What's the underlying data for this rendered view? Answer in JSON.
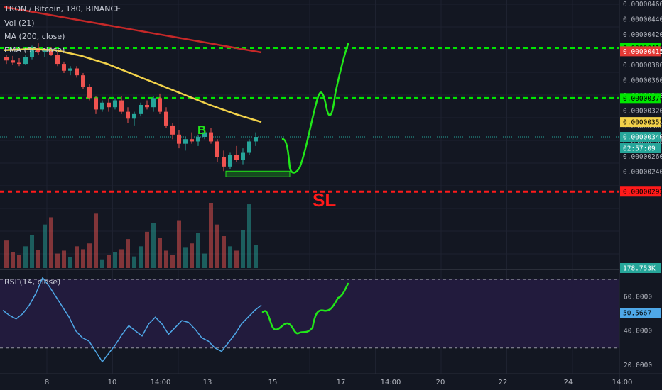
{
  "header": {
    "symbol": "TRON / Bitcoin, 180, BINANCE",
    "volume": "Vol (21)",
    "ma": "MA (200, close)",
    "ema": "EMA (50, close)",
    "rsi_label": "RSI (14, close)"
  },
  "annotations": {
    "sl_label": "SL",
    "b_label": "B"
  },
  "colors": {
    "background": "#131722",
    "grid": "#1e2230",
    "up": "#26a69a",
    "down": "#ef5350",
    "ma200": "#c62828",
    "ema50": "#f2d24a",
    "green_level": "#00e600",
    "red_level": "#ff1a1a",
    "rsi_line": "#4fa8e8",
    "drawn_path": "#21e619",
    "rsi_band": "#221b3d"
  },
  "chart_data": [
    {
      "type": "candlestick",
      "title": "TRON / Bitcoin, 180, BINANCE",
      "ylim": [
        2.25e-06,
        4.6e-06
      ],
      "y_ticks": [
        "0.00000460",
        "0.00000440",
        "0.00000420",
        "0.00000400",
        "0.00000380",
        "0.00000360",
        "0.00000340",
        "0.00000320",
        "0.00000300",
        "0.00000280",
        "0.00000260",
        "0.00000240"
      ],
      "x_ticks": [
        "8",
        "10",
        "14:00",
        "13",
        "15",
        "17",
        "14:00",
        "20",
        "22",
        "24",
        "14:00"
      ],
      "price_levels": [
        {
          "value": 4.18e-06,
          "label": "0.00000418",
          "color": "#00e600",
          "style": "dashed"
        },
        {
          "value": 3.74e-06,
          "label": "0.00000374",
          "color": "#00e600",
          "style": "dashed"
        },
        {
          "value": 2.92e-06,
          "label": "0.00000292",
          "color": "#ff1a1a",
          "style": "dashed"
        }
      ],
      "price_tags": [
        {
          "value": 4.15e-06,
          "label": "0.00000415",
          "color": "#e53935"
        },
        {
          "value": 3.53e-06,
          "label": "0.00000353",
          "color": "#f2d24a"
        },
        {
          "value": 3.4e-06,
          "label": "0.00000340",
          "color": "#26a69a"
        }
      ],
      "countdown": "02:57:09",
      "series": [
        {
          "name": "MA (200, close)",
          "values": [
            4.54e-06,
            4.5e-06,
            4.46e-06,
            4.42e-06,
            4.38e-06,
            4.34e-06,
            4.3e-06,
            4.26e-06,
            4.22e-06,
            4.18e-06,
            4.14e-06
          ]
        },
        {
          "name": "EMA (50, close)",
          "values": [
            4.16e-06,
            4.17e-06,
            4.16e-06,
            4.11e-06,
            4.04e-06,
            3.95e-06,
            3.86e-06,
            3.77e-06,
            3.68e-06,
            3.6e-06,
            3.53e-06
          ]
        }
      ],
      "candles": [
        [
          4.1e-06,
          4.12e-06,
          4.04e-06,
          4.07e-06
        ],
        [
          4.07e-06,
          4.11e-06,
          4.03e-06,
          4.05e-06
        ],
        [
          4.05e-06,
          4.09e-06,
          4.02e-06,
          4.04e-06
        ],
        [
          4.04e-06,
          4.12e-06,
          4.03e-06,
          4.1e-06
        ],
        [
          4.1e-06,
          4.2e-06,
          4.08e-06,
          4.18e-06
        ],
        [
          4.18e-06,
          4.22e-06,
          4.12e-06,
          4.14e-06
        ],
        [
          4.14e-06,
          4.18e-06,
          4.1e-06,
          4.16e-06
        ],
        [
          4.16e-06,
          4.19e-06,
          4.11e-06,
          4.12e-06
        ],
        [
          4.12e-06,
          4.14e-06,
          4.02e-06,
          4.04e-06
        ],
        [
          4.04e-06,
          4.06e-06,
          3.96e-06,
          3.98e-06
        ],
        [
          3.98e-06,
          4.02e-06,
          3.94e-06,
          4e-06
        ],
        [
          4e-06,
          4.02e-06,
          3.92e-06,
          3.94e-06
        ],
        [
          3.94e-06,
          3.96e-06,
          3.82e-06,
          3.84e-06
        ],
        [
          3.84e-06,
          3.86e-06,
          3.72e-06,
          3.74e-06
        ],
        [
          3.74e-06,
          3.76e-06,
          3.6e-06,
          3.64e-06
        ],
        [
          3.64e-06,
          3.72e-06,
          3.62e-06,
          3.7e-06
        ],
        [
          3.7e-06,
          3.74e-06,
          3.62e-06,
          3.66e-06
        ],
        [
          3.66e-06,
          3.74e-06,
          3.64e-06,
          3.72e-06
        ],
        [
          3.72e-06,
          3.76e-06,
          3.6e-06,
          3.62e-06
        ],
        [
          3.62e-06,
          3.66e-06,
          3.52e-06,
          3.56e-06
        ],
        [
          3.56e-06,
          3.62e-06,
          3.5e-06,
          3.6e-06
        ],
        [
          3.6e-06,
          3.7e-06,
          3.58e-06,
          3.68e-06
        ],
        [
          3.68e-06,
          3.72e-06,
          3.64e-06,
          3.66e-06
        ],
        [
          3.66e-06,
          3.76e-06,
          3.62e-06,
          3.74e-06
        ],
        [
          3.74e-06,
          3.78e-06,
          3.6e-06,
          3.62e-06
        ],
        [
          3.62e-06,
          3.66e-06,
          3.48e-06,
          3.5e-06
        ],
        [
          3.5e-06,
          3.52e-06,
          3.38e-06,
          3.42e-06
        ],
        [
          3.42e-06,
          3.46e-06,
          3.3e-06,
          3.34e-06
        ],
        [
          3.34e-06,
          3.4e-06,
          3.28e-06,
          3.38e-06
        ],
        [
          3.38e-06,
          3.44e-06,
          3.34e-06,
          3.36e-06
        ],
        [
          3.36e-06,
          3.42e-06,
          3.32e-06,
          3.4e-06
        ],
        [
          3.4e-06,
          3.46e-06,
          3.38e-06,
          3.44e-06
        ],
        [
          3.44e-06,
          3.48e-06,
          3.34e-06,
          3.36e-06
        ],
        [
          3.36e-06,
          3.38e-06,
          3.18e-06,
          3.22e-06
        ],
        [
          3.22e-06,
          3.28e-06,
          3.1e-06,
          3.14e-06
        ],
        [
          3.14e-06,
          3.26e-06,
          3.12e-06,
          3.24e-06
        ],
        [
          3.24e-06,
          3.32e-06,
          3.18e-06,
          3.2e-06
        ],
        [
          3.2e-06,
          3.3e-06,
          3.16e-06,
          3.26e-06
        ],
        [
          3.26e-06,
          3.38e-06,
          3.24e-06,
          3.36e-06
        ],
        [
          3.36e-06,
          3.44e-06,
          3.32e-06,
          3.4e-06
        ]
      ],
      "volume": [
        38,
        22,
        18,
        30,
        45,
        25,
        60,
        70,
        20,
        24,
        15,
        30,
        26,
        34,
        75,
        12,
        18,
        22,
        26,
        40,
        16,
        30,
        50,
        62,
        42,
        24,
        18,
        66,
        28,
        34,
        48,
        20,
        90,
        60,
        44,
        30,
        24,
        52,
        88,
        32
      ],
      "volume_tag": "178.753K",
      "buy_zone": {
        "y_high": 3.1e-06,
        "y_low": 3.05e-06
      }
    },
    {
      "type": "line",
      "title": "RSI (14, close)",
      "ylim": [
        15,
        75
      ],
      "y_ticks": [
        "60.0000",
        "40.0000",
        "20.0000"
      ],
      "bands": [
        70,
        30
      ],
      "current_value": 50.5667,
      "current_label": "50.5667",
      "series": [
        {
          "name": "RSI (14, close)",
          "values": [
            52,
            49,
            47,
            50,
            55,
            62,
            71,
            66,
            60,
            54,
            48,
            40,
            36,
            34,
            28,
            22,
            27,
            32,
            38,
            43,
            40,
            37,
            44,
            48,
            44,
            38,
            42,
            46,
            45,
            41,
            36,
            34,
            30,
            28,
            33,
            38,
            44,
            48,
            52,
            55
          ]
        }
      ]
    }
  ]
}
